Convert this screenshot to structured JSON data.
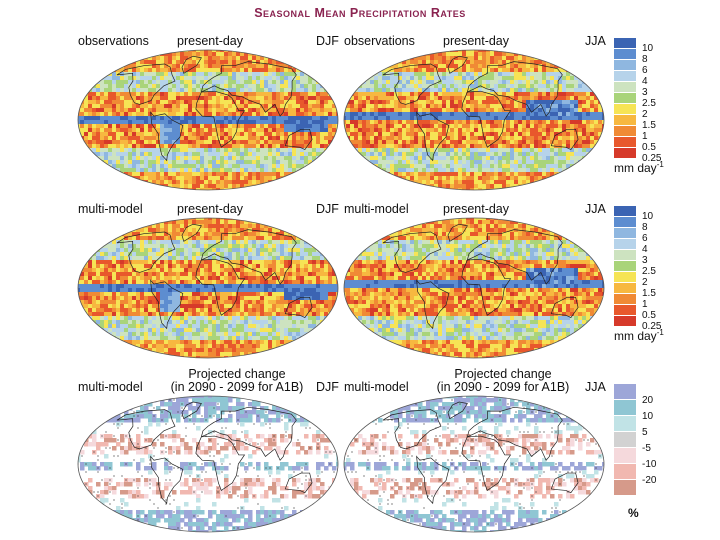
{
  "title": "Seasonal Mean Precipitation Rates",
  "rows": [
    {
      "left": {
        "label": "observations",
        "period": "present-day",
        "season": "DJF"
      },
      "right": {
        "label": "observations",
        "period": "present-day",
        "season": "JJA"
      }
    },
    {
      "left": {
        "label": "multi-model",
        "period": "present-day",
        "season": "DJF"
      },
      "right": {
        "label": "multi-model",
        "period": "present-day",
        "season": "JJA"
      }
    },
    {
      "left": {
        "label": "multi-model",
        "period": "Projected change",
        "period2": "(in 2090 - 2099 for A1B)",
        "season": "DJF"
      },
      "right": {
        "label": "multi-model",
        "period": "Projected change",
        "period2": "(in 2090 - 2099 for A1B)",
        "season": "JJA"
      }
    }
  ],
  "legend_precip": {
    "ticks": [
      "10",
      "8",
      "6",
      "4",
      "3",
      "2.5",
      "2",
      "1.5",
      "1",
      "0.5",
      "0.25"
    ],
    "colors": [
      "#3b64b3",
      "#5d8dd0",
      "#8fb7e0",
      "#b6d3ea",
      "#cde3c0",
      "#a9d47a",
      "#f6e455",
      "#f7b840",
      "#f08a35",
      "#e8582c",
      "#d63a2a"
    ],
    "unit": "mm day",
    "unit_sup": "-1"
  },
  "legend_change": {
    "ticks": [
      "20",
      "10",
      "5",
      "-5",
      "-10",
      "-20"
    ],
    "colors": [
      "#9da6d8",
      "#8fc6d3",
      "#c1e3e6",
      "#d2d2d2",
      "#f5d9dc",
      "#f1b8b0",
      "#d69a8a"
    ],
    "unit": "%"
  }
}
